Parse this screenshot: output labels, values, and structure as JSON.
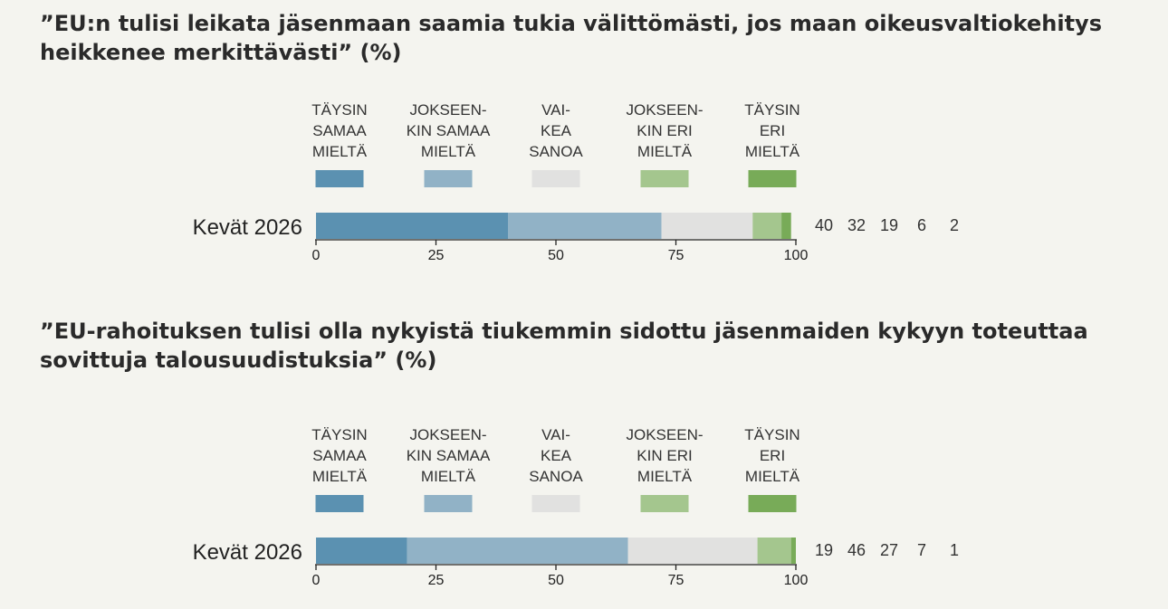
{
  "chart_data": [
    {
      "type": "bar",
      "orientation": "horizontal",
      "stacked": true,
      "title": "”EU:n tulisi leikata jäsenmaan saamia tukia välittömästi, jos maan oikeusvaltiokehitys heikkenee merkittävästi” (%)",
      "categories": [
        "Kevät 2026"
      ],
      "series": [
        {
          "name": "TÄYSIN SAMAA MIELTÄ",
          "values": [
            40
          ],
          "color": "#5b91b1"
        },
        {
          "name": "JOKSEEN-KIN SAMAA MIELTÄ",
          "values": [
            32
          ],
          "color": "#91b2c6"
        },
        {
          "name": "VAI-KEA SANOA",
          "values": [
            19
          ],
          "color": "#e1e1e0"
        },
        {
          "name": "JOKSEEN-KIN ERI MIELTÄ",
          "values": [
            6
          ],
          "color": "#a4c68e"
        },
        {
          "name": "TÄYSIN ERI MIELTÄ",
          "values": [
            2
          ],
          "color": "#78ab58"
        }
      ],
      "legend_lines": [
        [
          "TÄYSIN",
          "SAMAA",
          "MIELTÄ"
        ],
        [
          "JOKSEEN-",
          "KIN SAMAA",
          "MIELTÄ"
        ],
        [
          "VAI-",
          "KEA",
          "SANOA"
        ],
        [
          "JOKSEEN-",
          "KIN ERI",
          "MIELTÄ"
        ],
        [
          "TÄYSIN",
          "ERI",
          "MIELTÄ"
        ]
      ],
      "value_labels": [
        "40",
        "32",
        "19",
        "6",
        "2"
      ],
      "xlim": [
        0,
        100
      ],
      "xticks": [
        "0",
        "25",
        "50",
        "75",
        "100"
      ],
      "legend_position": "top"
    },
    {
      "type": "bar",
      "orientation": "horizontal",
      "stacked": true,
      "title": "”EU-rahoituksen tulisi olla nykyistä tiukemmin sidottu jäsenmaiden kykyyn toteuttaa sovittuja talousuudistuksia” (%)",
      "categories": [
        "Kevät 2026"
      ],
      "series": [
        {
          "name": "TÄYSIN SAMAA MIELTÄ",
          "values": [
            19
          ],
          "color": "#5b91b1"
        },
        {
          "name": "JOKSEEN-KIN SAMAA MIELTÄ",
          "values": [
            46
          ],
          "color": "#91b2c6"
        },
        {
          "name": "VAI-KEA SANOA",
          "values": [
            27
          ],
          "color": "#e1e1e0"
        },
        {
          "name": "JOKSEEN-KIN ERI MIELTÄ",
          "values": [
            7
          ],
          "color": "#a4c68e"
        },
        {
          "name": "TÄYSIN ERI MIELTÄ",
          "values": [
            1
          ],
          "color": "#78ab58"
        }
      ],
      "legend_lines": [
        [
          "TÄYSIN",
          "SAMAA",
          "MIELTÄ"
        ],
        [
          "JOKSEEN-",
          "KIN SAMAA",
          "MIELTÄ"
        ],
        [
          "VAI-",
          "KEA",
          "SANOA"
        ],
        [
          "JOKSEEN-",
          "KIN ERI",
          "MIELTÄ"
        ],
        [
          "TÄYSIN",
          "ERI",
          "MIELTÄ"
        ]
      ],
      "value_labels": [
        "19",
        "46",
        "27",
        "7",
        "1"
      ],
      "xlim": [
        0,
        100
      ],
      "xticks": [
        "0",
        "25",
        "50",
        "75",
        "100"
      ],
      "legend_position": "top"
    }
  ]
}
